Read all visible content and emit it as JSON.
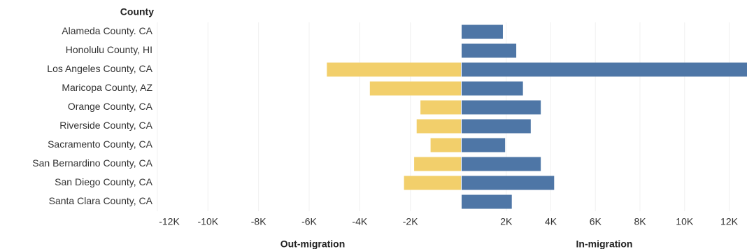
{
  "chart_data": {
    "type": "bar",
    "orientation": "horizontal",
    "category_label": "County",
    "categories": [
      "Alameda County. CA",
      "Honolulu County, HI",
      "Los Angeles County, CA",
      "Maricopa County, AZ",
      "Orange County, CA",
      "Riverside County, CA",
      "Sacramento County, CA",
      "San Bernardino County, CA",
      "San Diego County, CA",
      "Santa Clara County, CA"
    ],
    "grid": true,
    "series": [
      {
        "name": "Out-migration",
        "color": "#f2cf6b",
        "values": [
          null,
          null,
          -5300,
          -3600,
          -1600,
          -1750,
          -1200,
          -1850,
          -2250,
          null
        ],
        "xlim": [
          -12000,
          0
        ],
        "xticks": [
          {
            "value": -12000,
            "label": "-12K"
          },
          {
            "value": -10000,
            "label": "-10K"
          },
          {
            "value": -8000,
            "label": "-8K"
          },
          {
            "value": -6000,
            "label": "-6K"
          },
          {
            "value": -4000,
            "label": "-4K"
          },
          {
            "value": -2000,
            "label": "-2K"
          }
        ]
      },
      {
        "name": "In-migration",
        "color": "#4e76a6",
        "values": [
          1850,
          2450,
          12800,
          2750,
          3550,
          3100,
          1950,
          3550,
          4150,
          2250
        ],
        "xlim": [
          0,
          12800
        ],
        "xticks": [
          {
            "value": 2000,
            "label": "2K"
          },
          {
            "value": 4000,
            "label": "4K"
          },
          {
            "value": 6000,
            "label": "6K"
          },
          {
            "value": 8000,
            "label": "8K"
          },
          {
            "value": 10000,
            "label": "10K"
          },
          {
            "value": 12000,
            "label": "12K"
          }
        ]
      }
    ]
  }
}
